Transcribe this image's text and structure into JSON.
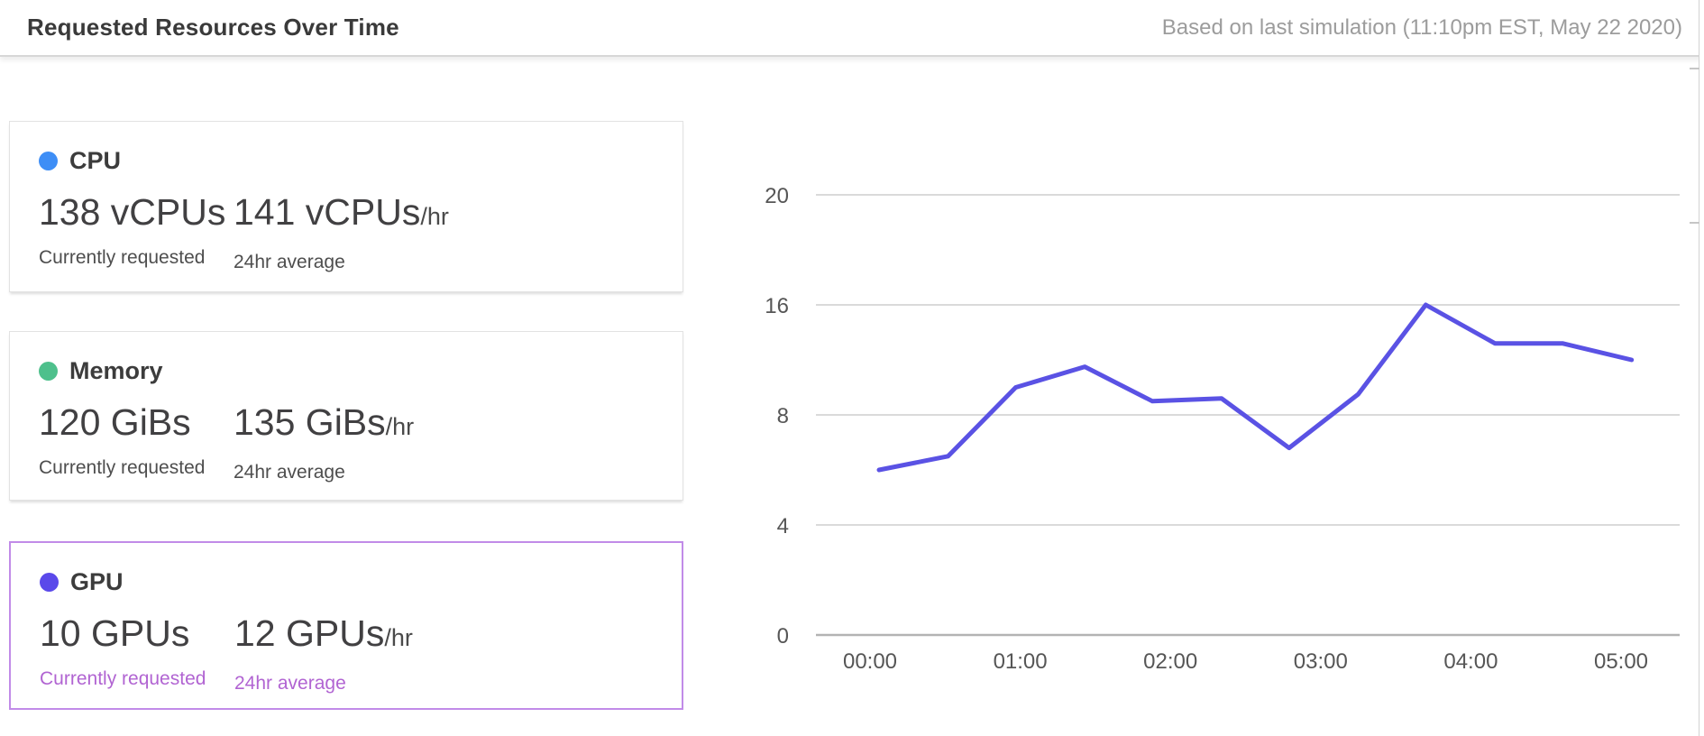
{
  "header": {
    "title": "Requested Resources Over Time",
    "subtitle": "Based on last simulation (11:10pm EST, May 22 2020)"
  },
  "cards": [
    {
      "label": "CPU",
      "dot_color": "#3e8ef6",
      "current_value": "138 vCPUs",
      "current_caption": "Currently requested",
      "average_value": "141 vCPUs",
      "average_suffix": "/hr",
      "average_caption": "24hr average",
      "selected": false
    },
    {
      "label": "Memory",
      "dot_color": "#4ec08c",
      "current_value": "120 GiBs",
      "current_caption": "Currently requested",
      "average_value": "135 GiBs",
      "average_suffix": "/hr",
      "average_caption": "24hr average",
      "selected": false
    },
    {
      "label": "GPU",
      "dot_color": "#5a49ea",
      "current_value": "10 GPUs",
      "current_caption": "Currently requested",
      "average_value": "12 GPUs",
      "average_suffix": "/hr",
      "average_caption": "24hr average",
      "selected": true,
      "border_color": "#c18be8",
      "caption_color": "#b164d2"
    }
  ],
  "chart_data": {
    "type": "line",
    "title": "",
    "xlabel": "",
    "ylabel": "",
    "grid": true,
    "legend_position": "none",
    "x_tick_labels": [
      "00:00",
      "01:00",
      "02:00",
      "03:00",
      "04:00",
      "05:00"
    ],
    "y_tick_labels": [
      0,
      4,
      8,
      16,
      20
    ],
    "y_scale": "equal-spaced-ticks",
    "axis_color": "#565656",
    "gridline_color": "#cdcdcd",
    "baseline_color": "#b3b3b3",
    "series": [
      {
        "name": "GPU",
        "color": "#5a52e4",
        "x_hours": [
          0.06,
          0.52,
          0.97,
          1.43,
          1.88,
          2.34,
          2.79,
          3.25,
          3.7,
          4.16,
          4.61,
          5.07
        ],
        "values": [
          6,
          6.5,
          10,
          11.5,
          9,
          9.2,
          6.8,
          9.5,
          16,
          13.2,
          13.2,
          12
        ]
      }
    ]
  }
}
